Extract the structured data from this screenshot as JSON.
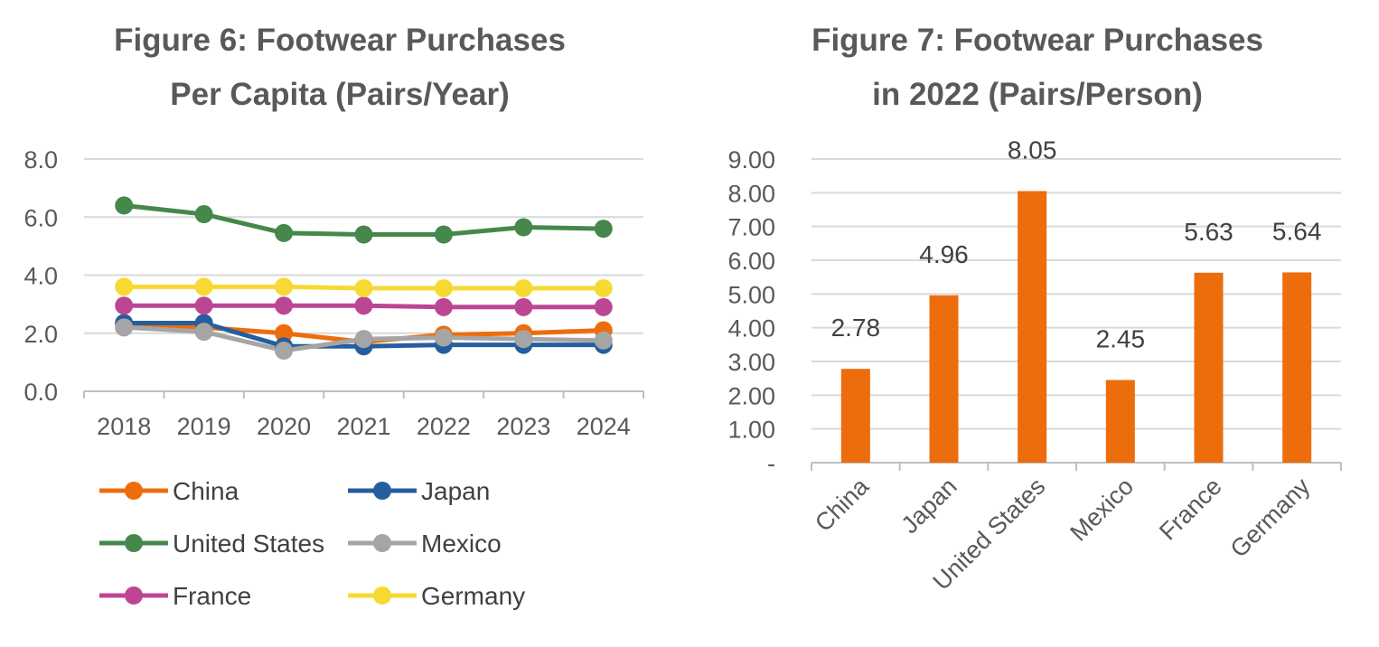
{
  "chart_data": [
    {
      "type": "line",
      "title": "Figure 6:  Footwear Purchases",
      "subtitle": "Per Capita (Pairs/Year)",
      "x": [
        "2018",
        "2019",
        "2020",
        "2021",
        "2022",
        "2023",
        "2024"
      ],
      "ylim": [
        0,
        8
      ],
      "yticks": [
        "0.0",
        "2.0",
        "4.0",
        "6.0",
        "8.0"
      ],
      "grid": true,
      "legend_position": "bottom",
      "series": [
        {
          "name": "China",
          "color": "#ED6C0C",
          "values": [
            2.3,
            2.2,
            2.0,
            1.7,
            1.95,
            2.0,
            2.1
          ]
        },
        {
          "name": "Japan",
          "color": "#255E9E",
          "values": [
            2.35,
            2.35,
            1.55,
            1.55,
            1.6,
            1.6,
            1.6
          ]
        },
        {
          "name": "United States",
          "color": "#46884C",
          "values": [
            6.4,
            6.1,
            5.45,
            5.4,
            5.4,
            5.65,
            5.6
          ]
        },
        {
          "name": "Mexico",
          "color": "#A5A5A5",
          "values": [
            2.2,
            2.05,
            1.4,
            1.8,
            1.85,
            1.8,
            1.75
          ]
        },
        {
          "name": "France",
          "color": "#BC4694",
          "values": [
            2.95,
            2.95,
            2.95,
            2.95,
            2.9,
            2.9,
            2.9
          ]
        },
        {
          "name": "Germany",
          "color": "#F7D933",
          "values": [
            3.6,
            3.6,
            3.6,
            3.55,
            3.55,
            3.55,
            3.55
          ]
        }
      ]
    },
    {
      "type": "bar",
      "title": "Figure 7:  Footwear Purchases",
      "subtitle": "in 2022 (Pairs/Person)",
      "categories": [
        "China",
        "Japan",
        "United States",
        "Mexico",
        "France",
        "Germany"
      ],
      "values": [
        2.78,
        4.96,
        8.05,
        2.45,
        5.63,
        5.64
      ],
      "data_labels": [
        "2.78",
        "4.96",
        "8.05",
        "2.45",
        "5.63",
        "5.64"
      ],
      "ylim": [
        0,
        9
      ],
      "yticks": [
        "-",
        "1.00",
        "2.00",
        "3.00",
        "4.00",
        "5.00",
        "6.00",
        "7.00",
        "8.00",
        "9.00"
      ],
      "grid": true,
      "bar_color": "#ED6C0C"
    }
  ]
}
